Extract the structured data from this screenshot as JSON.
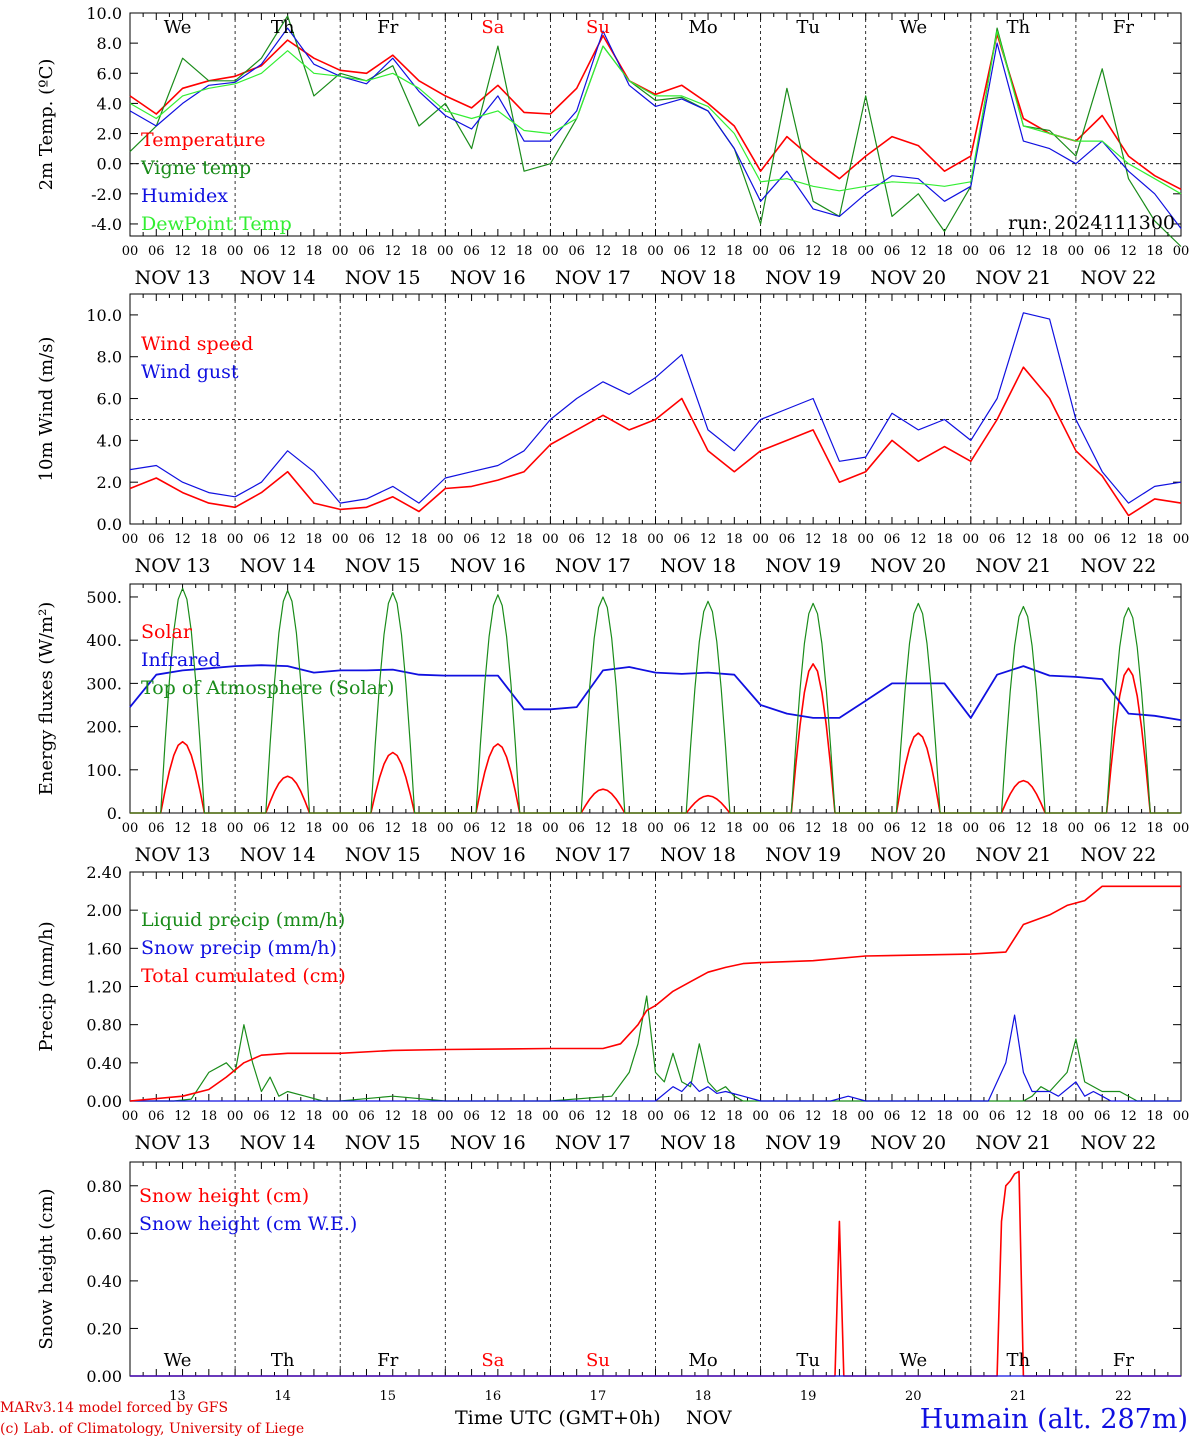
{
  "colors": {
    "red": "#ff0000",
    "green": "#1a8c1a",
    "blue": "#1010e0",
    "lightgreen": "#33ee33",
    "weekend": "#ff0000"
  },
  "days_of_week_top": [
    "We",
    "Th",
    "Fr",
    "Sa",
    "Su",
    "Mo",
    "Tu",
    "We",
    "Th",
    "Fr"
  ],
  "weekend_flags": [
    false,
    false,
    false,
    true,
    true,
    false,
    false,
    false,
    false,
    false
  ],
  "date_labels": [
    "NOV 13",
    "NOV 14",
    "NOV 15",
    "NOV 16",
    "NOV 17",
    "NOV 18",
    "NOV 19",
    "NOV 20",
    "NOV 21",
    "NOV 22"
  ],
  "hour_ticks": [
    "00",
    "06",
    "12",
    "18"
  ],
  "hour_end": "00",
  "bottom_day_numbers": [
    "13",
    "14",
    "15",
    "16",
    "17",
    "18",
    "19",
    "20",
    "21",
    "22"
  ],
  "footer": {
    "model": "MARv3.14 model forced by GFS",
    "copyright": "(c) Lab. of Climatology, University of Liege",
    "xlabel": "Time UTC (GMT+0h)",
    "month": "NOV",
    "station": "Humain (alt. 287m)"
  },
  "chart_data": [
    {
      "type": "line",
      "ylabel": "2m Temp. (ºC)",
      "ylim": [
        -4.8,
        10.0
      ],
      "yticks": [
        "10.0",
        "8.0",
        "6.0",
        "4.0",
        "2.0",
        "0.0",
        "-2.0",
        "-4.0"
      ],
      "ytick_values": [
        10,
        8,
        6,
        4,
        2,
        0,
        -2,
        -4
      ],
      "hline": 0,
      "run_label": "run: 2024111300",
      "x_unit": "hours since NOV 13 00 UTC",
      "series": [
        {
          "name": "Temperature",
          "color": "red",
          "x": [
            0,
            6,
            12,
            18,
            24,
            30,
            36,
            42,
            48,
            54,
            60,
            66,
            72,
            78,
            84,
            90,
            96,
            102,
            108,
            114,
            120,
            126,
            132,
            138,
            144,
            150,
            156,
            162,
            168,
            174,
            180,
            186,
            192,
            198,
            204,
            210,
            216,
            222,
            228,
            234,
            240
          ],
          "y": [
            4.5,
            3.3,
            5.0,
            5.5,
            5.8,
            6.5,
            8.2,
            7.0,
            6.2,
            6.0,
            7.2,
            5.5,
            4.5,
            3.7,
            5.2,
            3.4,
            3.3,
            5.0,
            8.5,
            5.5,
            4.6,
            5.2,
            4.0,
            2.5,
            -0.5,
            1.8,
            0.3,
            -1.0,
            0.5,
            1.8,
            1.2,
            -0.5,
            0.5,
            8.6,
            3.0,
            2.0,
            1.5,
            3.2,
            0.5,
            -0.8,
            -1.7
          ]
        },
        {
          "name": "Vigne temp",
          "color": "green",
          "x": [
            0,
            6,
            12,
            18,
            24,
            30,
            36,
            42,
            48,
            54,
            60,
            66,
            72,
            78,
            84,
            90,
            96,
            102,
            108,
            114,
            120,
            126,
            132,
            138,
            144,
            150,
            156,
            162,
            168,
            174,
            180,
            186,
            192,
            198,
            204,
            210,
            216,
            222,
            228,
            234,
            240
          ],
          "y": [
            0.8,
            2.5,
            7.0,
            5.5,
            5.5,
            7.0,
            9.8,
            4.5,
            6.0,
            5.5,
            6.5,
            2.5,
            4.0,
            1.0,
            7.8,
            -0.5,
            0.0,
            3.0,
            7.8,
            5.5,
            4.2,
            4.4,
            3.5,
            1.0,
            -4.0,
            5.0,
            -2.5,
            -3.5,
            4.5,
            -3.5,
            -2.0,
            -4.5,
            -1.5,
            9.0,
            2.5,
            2.2,
            0.5,
            6.3,
            -1.0,
            -3.8,
            -5.5
          ]
        },
        {
          "name": "Humidex",
          "color": "blue",
          "x": [
            0,
            6,
            12,
            18,
            24,
            30,
            36,
            42,
            48,
            54,
            60,
            66,
            72,
            78,
            84,
            90,
            96,
            102,
            108,
            114,
            120,
            126,
            132,
            138,
            144,
            150,
            156,
            162,
            168,
            174,
            180,
            186,
            192,
            198,
            204,
            210,
            216,
            222,
            228,
            234,
            240
          ],
          "y": [
            3.5,
            2.5,
            4.0,
            5.2,
            5.4,
            6.6,
            9.0,
            6.6,
            5.8,
            5.3,
            7.0,
            4.8,
            3.2,
            2.3,
            4.5,
            1.5,
            1.5,
            3.5,
            8.8,
            5.2,
            3.8,
            4.3,
            3.5,
            1.0,
            -2.5,
            -0.5,
            -3.0,
            -3.5,
            -2.0,
            -0.8,
            -1.0,
            -2.5,
            -1.5,
            8.0,
            1.5,
            1.0,
            0.0,
            1.5,
            -0.5,
            -2.0,
            -4.3
          ]
        },
        {
          "name": "DewPoint Temp",
          "color": "lightgreen",
          "x": [
            0,
            6,
            12,
            18,
            24,
            30,
            36,
            42,
            48,
            54,
            60,
            66,
            72,
            78,
            84,
            90,
            96,
            102,
            108,
            114,
            120,
            126,
            132,
            138,
            144,
            150,
            156,
            162,
            168,
            174,
            180,
            186,
            192,
            198,
            204,
            210,
            216,
            222,
            228,
            234,
            240
          ],
          "y": [
            4.0,
            3.0,
            4.5,
            5.0,
            5.3,
            6.0,
            7.5,
            6.0,
            5.8,
            5.5,
            6.0,
            5.0,
            3.5,
            3.0,
            3.5,
            2.2,
            2.0,
            3.0,
            7.8,
            5.5,
            4.5,
            4.5,
            3.8,
            2.0,
            -1.2,
            -1.0,
            -1.5,
            -1.8,
            -1.5,
            -1.2,
            -1.3,
            -1.5,
            -1.2,
            8.8,
            2.5,
            2.0,
            1.5,
            1.5,
            0.0,
            -1.0,
            -2.0
          ]
        }
      ]
    },
    {
      "type": "line",
      "ylabel": "10m Wind (m/s)",
      "ylim": [
        0,
        11.0
      ],
      "yticks": [
        "10.0",
        "8.0",
        "6.0",
        "4.0",
        "2.0",
        "0.0"
      ],
      "ytick_values": [
        10,
        8,
        6,
        4,
        2,
        0
      ],
      "hline": 5,
      "x_unit": "hours since NOV 13 00 UTC",
      "series": [
        {
          "name": "Wind speed",
          "color": "red",
          "x": [
            0,
            6,
            12,
            18,
            24,
            30,
            36,
            42,
            48,
            54,
            60,
            66,
            72,
            78,
            84,
            90,
            96,
            102,
            108,
            114,
            120,
            126,
            132,
            138,
            144,
            150,
            156,
            162,
            168,
            174,
            180,
            186,
            192,
            198,
            204,
            210,
            216,
            222,
            228,
            234,
            240
          ],
          "y": [
            1.7,
            2.2,
            1.5,
            1.0,
            0.8,
            1.5,
            2.5,
            1.0,
            0.7,
            0.8,
            1.3,
            0.6,
            1.7,
            1.8,
            2.1,
            2.5,
            3.8,
            4.5,
            5.2,
            4.5,
            5.0,
            6.0,
            3.5,
            2.5,
            3.5,
            4.0,
            4.5,
            2.0,
            2.5,
            4.0,
            3.0,
            3.7,
            3.0,
            5.0,
            7.5,
            6.0,
            3.5,
            2.3,
            0.4,
            1.2,
            1.0
          ]
        },
        {
          "name": "Wind gust",
          "color": "blue",
          "x": [
            0,
            6,
            12,
            18,
            24,
            30,
            36,
            42,
            48,
            54,
            60,
            66,
            72,
            78,
            84,
            90,
            96,
            102,
            108,
            114,
            120,
            126,
            132,
            138,
            144,
            150,
            156,
            162,
            168,
            174,
            180,
            186,
            192,
            198,
            204,
            210,
            216,
            222,
            228,
            234,
            240
          ],
          "y": [
            2.6,
            2.8,
            2.0,
            1.5,
            1.3,
            2.0,
            3.5,
            2.5,
            1.0,
            1.2,
            1.8,
            1.0,
            2.2,
            2.5,
            2.8,
            3.5,
            5.0,
            6.0,
            6.8,
            6.2,
            7.0,
            8.1,
            4.5,
            3.5,
            5.0,
            5.5,
            6.0,
            3.0,
            3.2,
            5.3,
            4.5,
            5.0,
            4.0,
            6.0,
            10.1,
            9.8,
            5.0,
            2.5,
            1.0,
            1.8,
            2.0
          ]
        }
      ]
    },
    {
      "type": "line",
      "ylabel": "Energy fluxes (W/m²)",
      "ylim": [
        0,
        530
      ],
      "yticks": [
        "500.",
        "400.",
        "300.",
        "200.",
        "100.",
        "0."
      ],
      "ytick_values": [
        500,
        400,
        300,
        200,
        100,
        0
      ],
      "x_unit": "hours since NOV 13 00 UTC",
      "series": [
        {
          "name": "Solar",
          "color": "red",
          "peaks": [
            165,
            85,
            140,
            160,
            55,
            40,
            345,
            185,
            75,
            335
          ]
        },
        {
          "name": "Infrared",
          "color": "blue",
          "x": [
            0,
            6,
            12,
            18,
            24,
            30,
            36,
            42,
            48,
            54,
            60,
            66,
            72,
            78,
            84,
            90,
            96,
            102,
            108,
            114,
            120,
            126,
            132,
            138,
            144,
            150,
            156,
            162,
            168,
            174,
            180,
            186,
            192,
            198,
            204,
            210,
            216,
            222,
            228,
            234,
            240
          ],
          "y": [
            245,
            320,
            330,
            335,
            340,
            342,
            340,
            325,
            330,
            330,
            332,
            320,
            318,
            318,
            318,
            240,
            240,
            245,
            330,
            338,
            325,
            322,
            325,
            320,
            250,
            230,
            220,
            220,
            260,
            300,
            300,
            300,
            220,
            320,
            340,
            318,
            315,
            310,
            230,
            225,
            215
          ]
        },
        {
          "name": "Top of Atmosphere (Solar)",
          "color": "green",
          "peaks": [
            520,
            515,
            510,
            505,
            500,
            490,
            485,
            485,
            478,
            475
          ]
        }
      ]
    },
    {
      "type": "line",
      "ylabel": "Precip (mm/h)",
      "ylim": [
        0,
        2.4
      ],
      "yticks": [
        "2.40",
        "2.00",
        "1.60",
        "1.20",
        "0.80",
        "0.40",
        "0.00"
      ],
      "ytick_values": [
        2.4,
        2.0,
        1.6,
        1.2,
        0.8,
        0.4,
        0.0
      ],
      "x_unit": "hours since NOV 13 00 UTC",
      "series": [
        {
          "name": "Liquid precip (mm/h)",
          "color": "green",
          "x": [
            0,
            10,
            14,
            18,
            22,
            24,
            26,
            28,
            30,
            32,
            34,
            36,
            40,
            44,
            48,
            60,
            72,
            96,
            110,
            114,
            116,
            118,
            120,
            122,
            124,
            126,
            128,
            130,
            132,
            134,
            136,
            138,
            140,
            144,
            180,
            204,
            206,
            208,
            210,
            214,
            216,
            218,
            222,
            226,
            230,
            240
          ],
          "y": [
            0,
            0,
            0.02,
            0.3,
            0.4,
            0.3,
            0.8,
            0.4,
            0.1,
            0.25,
            0.05,
            0.1,
            0.05,
            0,
            0,
            0.05,
            0,
            0,
            0.05,
            0.3,
            0.6,
            1.1,
            0.3,
            0.2,
            0.5,
            0.2,
            0.15,
            0.6,
            0.2,
            0.1,
            0.15,
            0.05,
            0,
            0,
            0,
            0,
            0.05,
            0.15,
            0.1,
            0.3,
            0.65,
            0.2,
            0.1,
            0.1,
            0,
            0
          ]
        },
        {
          "name": "Snow precip (mm/h)",
          "color": "blue",
          "x": [
            0,
            120,
            124,
            126,
            128,
            130,
            132,
            134,
            136,
            140,
            144,
            160,
            164,
            168,
            196,
            200,
            202,
            204,
            206,
            208,
            210,
            212,
            216,
            218,
            220,
            222,
            224,
            240
          ],
          "y": [
            0,
            0,
            0.15,
            0.1,
            0.2,
            0.1,
            0.15,
            0.08,
            0.1,
            0.05,
            0,
            0,
            0.05,
            0,
            0,
            0.4,
            0.9,
            0.3,
            0.1,
            0.1,
            0.1,
            0.05,
            0.2,
            0.05,
            0.1,
            0.05,
            0,
            0
          ]
        },
        {
          "name": "Total cumulated (cm)",
          "color": "red",
          "x": [
            0,
            12,
            18,
            22,
            26,
            30,
            36,
            48,
            60,
            72,
            96,
            108,
            112,
            116,
            118,
            120,
            124,
            128,
            132,
            136,
            140,
            144,
            156,
            168,
            192,
            200,
            204,
            210,
            214,
            218,
            222,
            240
          ],
          "y": [
            0,
            0.05,
            0.12,
            0.25,
            0.4,
            0.48,
            0.5,
            0.5,
            0.53,
            0.54,
            0.55,
            0.55,
            0.6,
            0.8,
            0.95,
            1.0,
            1.15,
            1.25,
            1.35,
            1.4,
            1.44,
            1.45,
            1.47,
            1.52,
            1.54,
            1.56,
            1.85,
            1.95,
            2.05,
            2.1,
            2.25,
            2.25
          ]
        }
      ]
    },
    {
      "type": "line",
      "ylabel": "Snow height (cm)",
      "ylim": [
        0,
        0.9
      ],
      "yticks": [
        "0.80",
        "0.60",
        "0.40",
        "0.20",
        "0.00"
      ],
      "ytick_values": [
        0.8,
        0.6,
        0.4,
        0.2,
        0.0
      ],
      "x_unit": "hours since NOV 13 00 UTC",
      "series": [
        {
          "name": "Snow height (cm)",
          "color": "red",
          "x": [
            0,
            161,
            162,
            163,
            164,
            198,
            199,
            200,
            201,
            202,
            203,
            204,
            240
          ],
          "y": [
            0,
            0,
            0.65,
            0,
            0,
            0,
            0.65,
            0.8,
            0.82,
            0.85,
            0.86,
            0,
            0
          ]
        },
        {
          "name": "Snow height (cm W.E.)",
          "color": "blue",
          "x": [
            0,
            240
          ],
          "y": [
            0,
            0
          ]
        }
      ]
    }
  ]
}
